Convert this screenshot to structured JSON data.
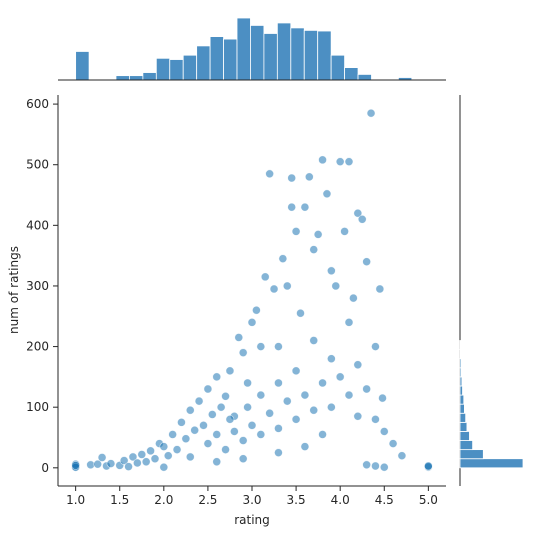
{
  "chart_data": {
    "type": "scatter",
    "title": "",
    "xlabel": "rating",
    "ylabel": "num of ratings",
    "xlim": [
      0.8,
      5.2
    ],
    "ylim": [
      -30,
      615
    ],
    "xticks": [
      1.0,
      1.5,
      2.0,
      2.5,
      3.0,
      3.5,
      4.0,
      4.5,
      5.0
    ],
    "xtick_labels": [
      "1.0",
      "1.5",
      "2.0",
      "2.5",
      "3.0",
      "3.5",
      "4.0",
      "4.5",
      "5.0"
    ],
    "yticks": [
      0,
      100,
      200,
      300,
      400,
      500,
      600
    ],
    "ytick_labels": [
      "0",
      "100",
      "200",
      "300",
      "400",
      "500",
      "600"
    ],
    "grid": false,
    "point_color": "#1f77b4",
    "bar_color": "#4c8fc3",
    "marginal_x_hist": {
      "bin_width": 0.1525,
      "bin_starts": [
        1.0,
        1.1525,
        1.305,
        1.4575,
        1.61,
        1.7625,
        1.915,
        2.0675,
        2.22,
        2.3725,
        2.525,
        2.6775,
        2.83,
        2.9825,
        3.135,
        3.2875,
        3.44,
        3.5925,
        3.745,
        3.8975,
        4.05,
        4.2025,
        4.355,
        4.5075,
        4.66,
        4.8125
      ],
      "counts": [
        46,
        0,
        0,
        7,
        7,
        12,
        35,
        33,
        40,
        55,
        70,
        66,
        100,
        88,
        75,
        92,
        84,
        80,
        79,
        40,
        20,
        9,
        0,
        0,
        4,
        0
      ]
    },
    "marginal_y_hist": {
      "bin_width": 15,
      "bin_starts": [
        0,
        15,
        30,
        45,
        60,
        75,
        90,
        105,
        120,
        135,
        150,
        165,
        180,
        195
      ],
      "counts": [
        100,
        37,
        20,
        15,
        11,
        9,
        7,
        6,
        4,
        3,
        2,
        2,
        1,
        1
      ]
    },
    "points": [
      [
        1.0,
        1
      ],
      [
        1.0,
        1
      ],
      [
        1.0,
        2
      ],
      [
        1.0,
        3
      ],
      [
        1.0,
        6
      ],
      [
        1.0,
        1
      ],
      [
        1.0,
        4
      ],
      [
        1.17,
        5
      ],
      [
        1.25,
        6
      ],
      [
        1.3,
        17
      ],
      [
        1.35,
        3
      ],
      [
        1.4,
        7
      ],
      [
        1.5,
        4
      ],
      [
        1.55,
        12
      ],
      [
        1.6,
        2
      ],
      [
        1.65,
        18
      ],
      [
        1.7,
        8
      ],
      [
        1.75,
        22
      ],
      [
        1.8,
        10
      ],
      [
        1.85,
        28
      ],
      [
        1.9,
        15
      ],
      [
        1.95,
        40
      ],
      [
        2.0,
        35
      ],
      [
        2.0,
        1
      ],
      [
        2.05,
        20
      ],
      [
        2.1,
        55
      ],
      [
        2.15,
        30
      ],
      [
        2.2,
        75
      ],
      [
        2.25,
        48
      ],
      [
        2.3,
        95
      ],
      [
        2.35,
        62
      ],
      [
        2.4,
        110
      ],
      [
        2.45,
        70
      ],
      [
        2.5,
        130
      ],
      [
        2.55,
        88
      ],
      [
        2.6,
        150
      ],
      [
        2.65,
        100
      ],
      [
        2.7,
        118
      ],
      [
        2.75,
        160
      ],
      [
        2.8,
        85
      ],
      [
        2.85,
        215
      ],
      [
        2.9,
        190
      ],
      [
        2.95,
        140
      ],
      [
        3.0,
        240
      ],
      [
        3.05,
        260
      ],
      [
        3.1,
        200
      ],
      [
        3.15,
        315
      ],
      [
        3.2,
        485
      ],
      [
        3.25,
        295
      ],
      [
        3.3,
        200
      ],
      [
        3.35,
        345
      ],
      [
        3.4,
        300
      ],
      [
        3.45,
        430
      ],
      [
        3.45,
        478
      ],
      [
        3.5,
        390
      ],
      [
        3.55,
        255
      ],
      [
        3.6,
        430
      ],
      [
        3.65,
        480
      ],
      [
        3.7,
        360
      ],
      [
        3.75,
        385
      ],
      [
        3.8,
        508
      ],
      [
        3.85,
        452
      ],
      [
        3.9,
        325
      ],
      [
        3.95,
        300
      ],
      [
        4.0,
        505
      ],
      [
        4.05,
        390
      ],
      [
        4.1,
        505
      ],
      [
        4.15,
        280
      ],
      [
        4.2,
        420
      ],
      [
        4.25,
        410
      ],
      [
        4.3,
        340
      ],
      [
        4.35,
        585
      ],
      [
        4.4,
        200
      ],
      [
        4.45,
        295
      ],
      [
        4.48,
        115
      ],
      [
        2.5,
        40
      ],
      [
        2.6,
        55
      ],
      [
        2.7,
        30
      ],
      [
        2.8,
        60
      ],
      [
        2.9,
        45
      ],
      [
        3.0,
        70
      ],
      [
        3.1,
        55
      ],
      [
        3.2,
        90
      ],
      [
        3.3,
        65
      ],
      [
        3.4,
        110
      ],
      [
        3.5,
        80
      ],
      [
        3.6,
        120
      ],
      [
        3.7,
        95
      ],
      [
        3.8,
        140
      ],
      [
        3.9,
        100
      ],
      [
        4.0,
        150
      ],
      [
        4.1,
        120
      ],
      [
        4.2,
        170
      ],
      [
        4.3,
        130
      ],
      [
        4.4,
        80
      ],
      [
        4.5,
        60
      ],
      [
        4.6,
        40
      ],
      [
        4.7,
        20
      ],
      [
        5.0,
        1
      ],
      [
        5.0,
        2
      ],
      [
        5.0,
        3
      ],
      [
        4.5,
        1
      ],
      [
        4.4,
        3
      ],
      [
        4.3,
        5
      ],
      [
        3.6,
        35
      ],
      [
        3.3,
        25
      ],
      [
        2.9,
        15
      ],
      [
        2.6,
        10
      ],
      [
        2.3,
        18
      ],
      [
        3.8,
        55
      ],
      [
        4.2,
        85
      ],
      [
        4.1,
        240
      ],
      [
        3.9,
        180
      ],
      [
        3.7,
        210
      ],
      [
        3.5,
        160
      ],
      [
        3.3,
        140
      ],
      [
        3.1,
        120
      ],
      [
        2.95,
        100
      ],
      [
        2.75,
        80
      ]
    ]
  }
}
